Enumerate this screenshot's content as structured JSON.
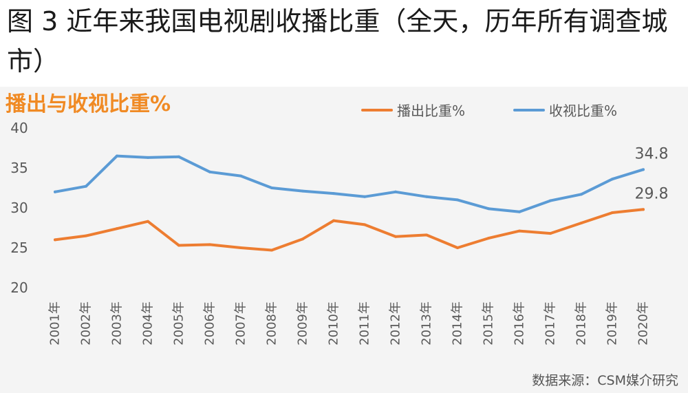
{
  "figure": {
    "title": "图 3 近年来我国电视剧收播比重（全天，历年所有调查城市）",
    "source": "数据来源：CSM媒介研究"
  },
  "chart_data": {
    "type": "line",
    "title": "播出与收视比重%",
    "xlabel": "",
    "ylabel": "",
    "ylim": [
      20,
      40
    ],
    "yticks": [
      "20",
      "25",
      "30",
      "35",
      "40"
    ],
    "grid": false,
    "legend_position": "top-right",
    "categories": [
      "2001年",
      "2002年",
      "2003年",
      "2004年",
      "2005年",
      "2006年",
      "2007年",
      "2008年",
      "2009年",
      "2010年",
      "2011年",
      "2012年",
      "2013年",
      "2014年",
      "2015年",
      "2016年",
      "2017年",
      "2018年",
      "2019年",
      "2020年"
    ],
    "series": [
      {
        "name": "播出比重%",
        "color": "#ed7d31",
        "values": [
          26.0,
          26.5,
          27.4,
          28.3,
          25.3,
          25.4,
          25.0,
          24.7,
          26.1,
          28.4,
          27.9,
          26.4,
          26.6,
          25.0,
          26.2,
          27.1,
          26.8,
          28.1,
          29.4,
          29.8
        ],
        "end_label": "29.8"
      },
      {
        "name": "收视比重%",
        "color": "#5b9bd5",
        "values": [
          32.0,
          32.7,
          36.5,
          36.3,
          36.4,
          34.5,
          34.0,
          32.5,
          32.1,
          31.8,
          31.4,
          32.0,
          31.4,
          31.0,
          29.9,
          29.5,
          30.9,
          31.7,
          33.6,
          34.8
        ],
        "end_label": "34.8"
      }
    ]
  }
}
